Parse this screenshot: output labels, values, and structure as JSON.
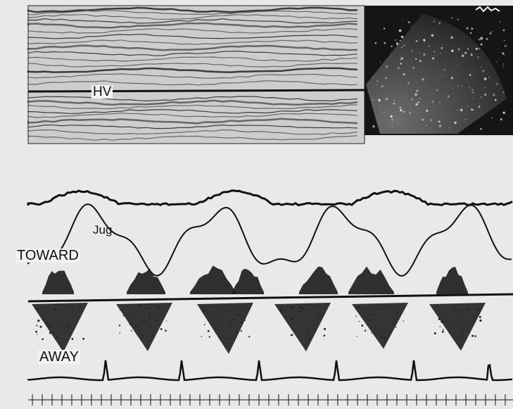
{
  "labels": {
    "hv": "HV",
    "jug": "Jug",
    "toward": "TOWARD",
    "away": "AWAY"
  },
  "colors": {
    "paper": "#e9e9e9",
    "ink": "#111111",
    "mmode_bg": "#cfcfcf",
    "echo_bg": "#1a1a1a"
  },
  "icons": {
    "inset": "echo-sector-image"
  }
}
